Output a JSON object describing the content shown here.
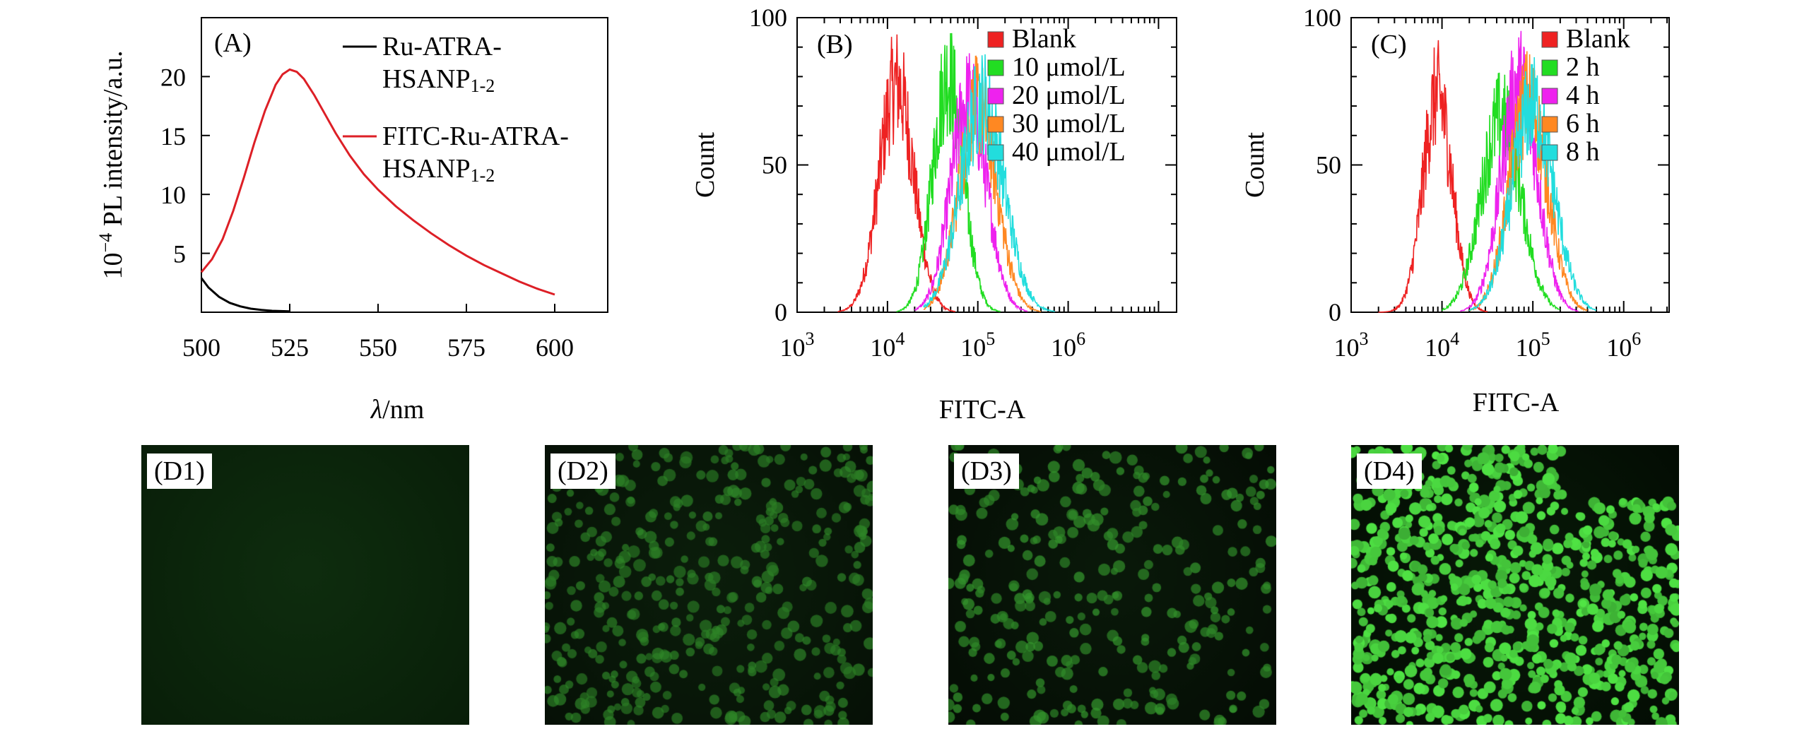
{
  "chart_data": [
    {
      "type": "line",
      "panel": "(A)",
      "xlabel_italic": "λ",
      "xlabel_rest": "/nm",
      "ylabel_prefix": "10",
      "ylabel_exp": "−4",
      "ylabel_rest": " PL intensity/a.u.",
      "xlim": [
        500,
        615
      ],
      "ylim": [
        0,
        25
      ],
      "xticks": [
        500,
        525,
        550,
        575,
        600
      ],
      "yticks": [
        5,
        10,
        15,
        20
      ],
      "legend": [
        {
          "line1": "Ru-ATRA-",
          "line2": "HSANP",
          "sub": "1-2",
          "color": "#000000"
        },
        {
          "line1": "FITC-Ru-ATRA-",
          "line2": "HSANP",
          "sub": "1-2",
          "color": "#dd1f26"
        }
      ],
      "series": [
        {
          "x": [
            500,
            502,
            505,
            508,
            511,
            514,
            517,
            520,
            525
          ],
          "y": [
            2.9,
            2.1,
            1.3,
            0.8,
            0.5,
            0.3,
            0.2,
            0.12,
            0.08
          ]
        },
        {
          "x": [
            500,
            503,
            506,
            509,
            512,
            515,
            518,
            521,
            523,
            525,
            527,
            529,
            532,
            535,
            538,
            542,
            546,
            550,
            555,
            560,
            565,
            570,
            575,
            580,
            585,
            590,
            595,
            600
          ],
          "y": [
            3.4,
            4.5,
            6.2,
            8.6,
            11.4,
            14.4,
            17.1,
            19.3,
            20.2,
            20.6,
            20.4,
            19.8,
            18.4,
            16.8,
            15.2,
            13.3,
            11.7,
            10.4,
            9.0,
            7.8,
            6.7,
            5.7,
            4.8,
            4.0,
            3.3,
            2.6,
            2.0,
            1.5
          ]
        }
      ]
    },
    {
      "type": "line",
      "panel": "(B)",
      "xlabel": "FITC-A",
      "ylabel": "Count",
      "xscale": "log",
      "xlim_log10": [
        3,
        7.2
      ],
      "ylim": [
        0,
        100
      ],
      "yticks": [
        0,
        50,
        100
      ],
      "xticks": [
        {
          "base": "10",
          "exp": "3",
          "log": 3
        },
        {
          "base": "10",
          "exp": "4",
          "log": 4
        },
        {
          "base": "10",
          "exp": "5",
          "log": 5
        },
        {
          "base": "10",
          "exp": "6",
          "log": 6
        }
      ],
      "legend": [
        "Blank",
        "10 μmol/L",
        "20 μmol/L",
        "30 μmol/L",
        "40 μmol/L"
      ],
      "series": [
        {
          "color": "#ee2222",
          "mu": 4.1,
          "sigma": 0.19,
          "peak": 80,
          "lo": 3.45,
          "hi": 4.75
        },
        {
          "color": "#22dd22",
          "mu": 4.67,
          "sigma": 0.17,
          "peak": 82,
          "lo": 4.1,
          "hi": 5.25
        },
        {
          "color": "#ee22ee",
          "mu": 4.9,
          "sigma": 0.2,
          "peak": 74,
          "lo": 4.3,
          "hi": 5.55
        },
        {
          "color": "#ff8822",
          "mu": 5.0,
          "sigma": 0.21,
          "peak": 72,
          "lo": 4.4,
          "hi": 5.7
        },
        {
          "color": "#22dddd",
          "mu": 5.05,
          "sigma": 0.24,
          "peak": 74,
          "lo": 4.4,
          "hi": 5.85
        }
      ]
    },
    {
      "type": "line",
      "panel": "(C)",
      "xlabel": "FITC-A",
      "ylabel": "Count",
      "xscale": "log",
      "xlim_log10": [
        3,
        6.5
      ],
      "ylim": [
        0,
        100
      ],
      "yticks": [
        0,
        50,
        100
      ],
      "xticks": [
        {
          "base": "10",
          "exp": "3",
          "log": 3
        },
        {
          "base": "10",
          "exp": "4",
          "log": 4
        },
        {
          "base": "10",
          "exp": "5",
          "log": 5
        },
        {
          "base": "10",
          "exp": "6",
          "log": 6
        }
      ],
      "legend": [
        "Blank",
        "2 h",
        "4 h",
        "6 h",
        "8 h"
      ],
      "series": [
        {
          "color": "#ee2222",
          "mu": 3.95,
          "sigma": 0.16,
          "peak": 76,
          "lo": 3.3,
          "hi": 4.5
        },
        {
          "color": "#22dd22",
          "mu": 4.65,
          "sigma": 0.22,
          "peak": 68,
          "lo": 4.0,
          "hi": 5.3
        },
        {
          "color": "#ee22ee",
          "mu": 4.85,
          "sigma": 0.2,
          "peak": 80,
          "lo": 4.2,
          "hi": 5.5
        },
        {
          "color": "#ff8822",
          "mu": 4.95,
          "sigma": 0.21,
          "peak": 74,
          "lo": 4.3,
          "hi": 5.6
        },
        {
          "color": "#22dddd",
          "mu": 5.0,
          "sigma": 0.23,
          "peak": 72,
          "lo": 4.3,
          "hi": 5.7
        }
      ]
    }
  ],
  "micrographs": [
    {
      "label": "(D1)",
      "base_color": "#0c2a0c",
      "cells": 0
    },
    {
      "label": "(D2)",
      "base_color": "#081608",
      "cells": 420
    },
    {
      "label": "(D3)",
      "base_color": "#061006",
      "cells": 520
    },
    {
      "label": "(D4)",
      "base_color": "#041004",
      "cells": 900
    }
  ]
}
